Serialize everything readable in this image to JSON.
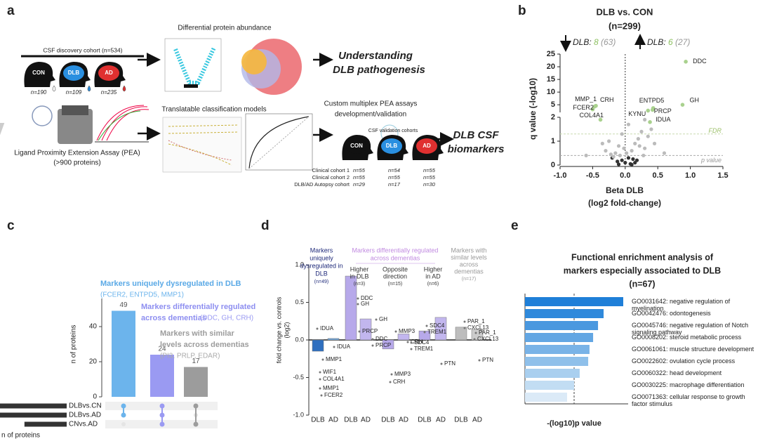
{
  "panel_labels": [
    "a",
    "b",
    "c",
    "d",
    "e"
  ],
  "panel_a": {
    "discovery": {
      "title": "CSF discovery cohort (n=534)",
      "groups": [
        {
          "name": "CON",
          "n": "n=190"
        },
        {
          "name": "DLB",
          "n": "n=109"
        },
        {
          "name": "AD",
          "n": "n=235"
        }
      ]
    },
    "assay": [
      "Ligand Proximity Extension Assay (PEA)",
      "(>900 proteins)"
    ],
    "differential": "Differential protein abundance",
    "outcome1": [
      "Understanding",
      "DLB pathogenesis"
    ],
    "classification": "Translatable classification models",
    "custom": [
      "Custom multiplex PEA assays",
      "development/validation"
    ],
    "validation": {
      "title": "CSF validation cohorts",
      "groups": [
        "CON",
        "DLB",
        "AD"
      ],
      "rows": [
        {
          "name": "Clinical cohort 1",
          "n": [
            "n=55",
            "n=54",
            "n=55"
          ]
        },
        {
          "name": "Clinical cohort 2",
          "n": [
            "n=55",
            "n=55",
            "n=55"
          ]
        },
        {
          "name": "DLB/AD Autopsy cohort",
          "n": [
            "n=29",
            "n=17",
            "n=30"
          ]
        }
      ]
    },
    "outcome2": [
      "DLB CSF",
      "biomarkers"
    ]
  },
  "chart_data": [
    {
      "type": "scatter",
      "title": "DLB vs. CON",
      "subtitle": "(n=299)",
      "down": {
        "text": "DLB:",
        "sig": "8",
        "total": "(63)"
      },
      "up": {
        "text": "DLB:",
        "sig": "6",
        "total": "(27)"
      },
      "xlabel": [
        "Beta DLB",
        "(log2 fold-change)"
      ],
      "ylabel": "q value (-log10)",
      "xlim": [
        -1,
        1.5
      ],
      "xticks": [
        {
          "value": -1,
          "label": "-1.0"
        },
        {
          "value": -0.5,
          "label": "-0.5"
        },
        {
          "value": 0,
          "label": "0.0"
        },
        {
          "value": 0.5,
          "label": "0.5"
        },
        {
          "value": 1,
          "label": "1.0"
        },
        {
          "value": 1.5,
          "label": "1.5"
        }
      ],
      "ylim": [
        0,
        25
      ],
      "ybreak": 2,
      "yticks": [
        0,
        1,
        2,
        5,
        10,
        15,
        20,
        25
      ],
      "thresholds": [
        {
          "label": "FDR",
          "value": 1.3
        },
        {
          "label": "p value",
          "value": 0.4
        }
      ],
      "points": {
        "color": "#bbbbbb",
        "x": [
          -0.2,
          -0.15,
          -0.1,
          -0.05,
          0,
          0.05,
          0.1,
          0.15,
          0.2,
          -0.3,
          0.3,
          -0.25,
          0.25,
          -0.12,
          0.12,
          -0.08,
          0.08,
          0.02,
          -0.02,
          0.18,
          -0.18,
          0.35,
          -0.35,
          0.4,
          0.22,
          -0.22,
          0.05,
          -0.05,
          0.28,
          0.15,
          -0.6,
          0.6,
          0.45,
          0.1,
          -0.1,
          0.3
        ],
        "y": [
          0.3,
          0.5,
          0.8,
          0.2,
          0.1,
          0.3,
          0.6,
          0.9,
          1.1,
          0.6,
          0.7,
          1.0,
          1.4,
          0.15,
          0.25,
          0.4,
          0.05,
          0.5,
          0.7,
          0.2,
          0.35,
          1.2,
          0.9,
          1.5,
          0.8,
          0.45,
          1.7,
          1.3,
          0.4,
          0.1,
          0.4,
          0.5,
          0.9,
          0.02,
          0.03,
          1.9
        ]
      },
      "highlighted": {
        "color": "#a9d18e",
        "labels": [
          "MMP_1",
          "FCER2",
          "CRH",
          "COL4A1",
          "ENTPD5",
          "KYNU",
          "PRCP",
          "IDUA",
          "DDC",
          "GH"
        ],
        "x": [
          -0.47,
          -0.5,
          -0.45,
          -0.38,
          0.43,
          0.35,
          0.42,
          0.38,
          0.93,
          0.88
        ],
        "y": [
          4.3,
          3.2,
          4.6,
          1.9,
          3.7,
          2.7,
          3.0,
          1.8,
          22,
          5
        ]
      }
    },
    {
      "type": "bar",
      "ylabel": "n of proteins",
      "values": [
        49,
        24,
        17
      ],
      "colors": [
        "#6cb4ec",
        "#9a9af2",
        "#9c9c9c"
      ],
      "ylim": [
        0,
        56
      ],
      "yticks": [
        0,
        20,
        40
      ],
      "annotations": [
        "Markers uniquely dysregulated in DLB",
        "(FCER2, ENTPD5, MMP1)",
        "Markers differentially regulated",
        "across dementias",
        "(DDC, GH, CRH)",
        "Markers with similar",
        "levels across dementias",
        "(PI3, PRLP, EDAR)"
      ],
      "sets": {
        "names": [
          "DLBvs.CN",
          "DLBvs.AD",
          "CNvs.AD"
        ],
        "values": [
          90,
          90,
          57
        ],
        "xlabel": "n of proteins"
      },
      "membership": [
        [
          0,
          1
        ],
        [
          0,
          1,
          2
        ],
        [
          0,
          2
        ]
      ]
    },
    {
      "type": "bar",
      "ylabel": [
        "fold change vs. controls",
        "(log2)"
      ],
      "categories": [
        "DLB",
        "AD",
        "DLB",
        "AD",
        "DLB",
        "AD",
        "DLB",
        "AD",
        "DLB",
        "AD"
      ],
      "values": [
        -0.15,
        0.02,
        0.85,
        0.28,
        -0.12,
        0.08,
        0.12,
        0.3,
        0.17,
        0.14
      ],
      "colors": [
        "#2f6fbf",
        "#74aadf",
        "#b7a9ea",
        "#c2b6ee",
        "#b7a9ea",
        "#c2b6ee",
        "#b7a9ea",
        "#c2b6ee",
        "#bdbdbd",
        "#cccccc"
      ],
      "ylim": [
        -1,
        1
      ],
      "yticks": [
        {
          "value": -1,
          "label": "-1.0"
        },
        {
          "value": -0.5,
          "label": "-0.5"
        },
        {
          "value": 0,
          "label": "0.0"
        },
        {
          "value": 0.5,
          "label": "0.5"
        },
        {
          "value": 1,
          "label": "1.0"
        }
      ],
      "headers": [
        {
          "lines": [
            "Markers",
            "uniquely",
            "dysregulated in",
            "DLB"
          ],
          "n": "(n=49)"
        },
        {
          "lines": [
            "Markers differentially regulated",
            "across dementias"
          ]
        },
        {
          "lines": [
            "Higher",
            "in DLB"
          ],
          "n": "(n=3)"
        },
        {
          "lines": [
            "Opposite",
            "direction"
          ],
          "n": "(n=15)"
        },
        {
          "lines": [
            "Higher",
            "in AD"
          ],
          "n": "(n=6)"
        },
        {
          "lines": [
            "Markers with",
            "similar levels",
            "across",
            "dementias"
          ],
          "n": "(n=17)"
        }
      ],
      "point_labels": [
        "IDUA",
        "IDUA",
        "MMP1",
        "WIF1",
        "COL4A1",
        "MMP1",
        "FCER2",
        "DDC",
        "GH",
        "GH",
        "PRCP",
        "DDC",
        "PRCP",
        "MMP3",
        "CRH",
        "MMP3",
        "CRH",
        "SDC4",
        "TREM1",
        "SDC4",
        "TREM1",
        "PAR_1",
        "CXCL13",
        "PAR_1",
        "CXCL13",
        "PTN",
        "PTN"
      ]
    },
    {
      "type": "barh",
      "title": [
        "Functional enrichment analysis of",
        "markers especially associated to DLB",
        "(n=67)"
      ],
      "xlabel": "-(log10)p value",
      "categories": [
        "GO0031642: negative regulation of myelination",
        "GO0042476: odontogenesis",
        "GO0045746: negative regulation of Notch signaling pathway",
        "GO0008202: steroid metabolic process",
        "GO0061061: muscle structure development",
        "GO0022602: ovulation cycle process",
        "GO0060322: head development",
        "GO0030225: macrophage differentiation",
        "GO0071363: cellular response to growth factor stimulus"
      ],
      "values": [
        6.0,
        4.8,
        4.46,
        4.16,
        3.94,
        3.86,
        3.34,
        3.0,
        2.57
      ],
      "colors": [
        "#1f7fd8",
        "#2f89db",
        "#4a98df",
        "#62a6e3",
        "#79b3e7",
        "#8fc0ea",
        "#a9cfef",
        "#c2ddf3",
        "#dbeaf7"
      ],
      "xlim": [
        0,
        6
      ],
      "threshold": 3
    }
  ]
}
